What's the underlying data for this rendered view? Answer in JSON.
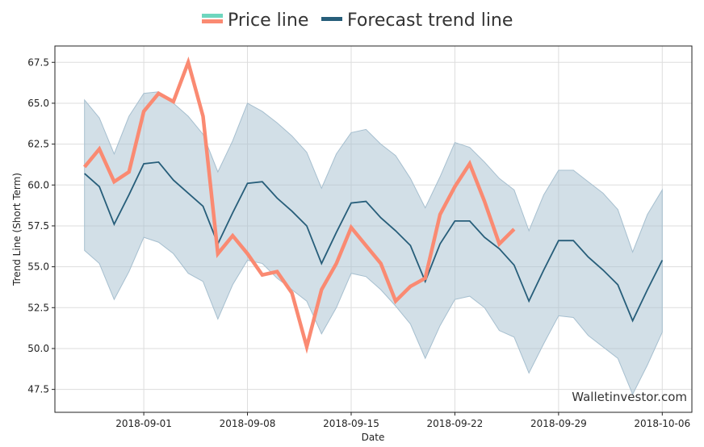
{
  "chart_data": {
    "type": "line",
    "xlabel": "Date",
    "ylabel": "Trend Line (Short Term)",
    "xlim": [
      "2018-08-26",
      "2018-10-08"
    ],
    "ylim": [
      46.1,
      68.5
    ],
    "grid": true,
    "legend_placement": "top-center",
    "watermark": "Walletinvestor.com",
    "x_ticks": [
      "2018-09-01",
      "2018-09-08",
      "2018-09-15",
      "2018-09-22",
      "2018-09-29",
      "2018-10-06"
    ],
    "y_ticks": [
      "47.5",
      "50.0",
      "52.5",
      "55.0",
      "57.5",
      "60.0",
      "62.5",
      "65.0",
      "67.5"
    ],
    "colors": {
      "price": "#fa8a72",
      "price_legend_top": "#6ed6be",
      "forecast": "#275e7a",
      "band": "#a6bfcf"
    },
    "series": [
      {
        "name": "Price line",
        "start_date": "2018-08-28",
        "values": [
          61.1,
          62.2,
          60.2,
          60.8,
          64.5,
          65.6,
          65.1,
          67.5,
          64.2,
          55.8,
          56.9,
          55.8,
          54.5,
          54.7,
          53.4,
          50.1,
          53.6,
          55.2,
          57.4,
          56.3,
          55.2,
          52.9,
          53.8,
          54.3,
          58.2,
          59.9,
          61.3,
          59.0,
          56.4,
          57.3
        ]
      },
      {
        "name": "Forecast trend line",
        "start_date": "2018-08-28",
        "values": [
          60.7,
          59.9,
          57.6,
          59.4,
          61.3,
          61.4,
          60.3,
          59.5,
          58.7,
          56.4,
          58.3,
          60.1,
          60.2,
          59.2,
          58.4,
          57.5,
          55.2,
          57.1,
          58.9,
          59.0,
          58.0,
          57.2,
          56.3,
          54.1,
          56.4,
          57.8,
          57.8,
          56.8,
          56.1,
          55.1,
          52.9,
          54.8,
          56.6,
          56.6,
          55.6,
          54.8,
          53.9,
          51.7,
          53.6,
          55.4
        ],
        "upper": [
          65.2,
          64.1,
          61.9,
          64.2,
          65.6,
          65.7,
          65.0,
          64.2,
          63.1,
          60.8,
          62.7,
          65.0,
          64.5,
          63.8,
          63.0,
          62.0,
          59.8,
          61.9,
          63.2,
          63.4,
          62.5,
          61.8,
          60.4,
          58.6,
          60.5,
          62.6,
          62.3,
          61.4,
          60.4,
          59.7,
          57.2,
          59.4,
          60.9,
          60.9,
          60.2,
          59.5,
          58.5,
          55.9,
          58.2,
          59.7
        ],
        "lower": [
          56.0,
          55.2,
          53.0,
          54.7,
          56.8,
          56.5,
          55.8,
          54.6,
          54.1,
          51.8,
          53.9,
          55.4,
          55.2,
          54.3,
          53.6,
          52.9,
          50.9,
          52.5,
          54.6,
          54.4,
          53.6,
          52.6,
          51.5,
          49.4,
          51.4,
          53.0,
          53.2,
          52.5,
          51.1,
          50.7,
          48.5,
          50.3,
          52.0,
          51.9,
          50.8,
          50.1,
          49.4,
          47.2,
          49.0,
          51.0
        ]
      }
    ]
  }
}
